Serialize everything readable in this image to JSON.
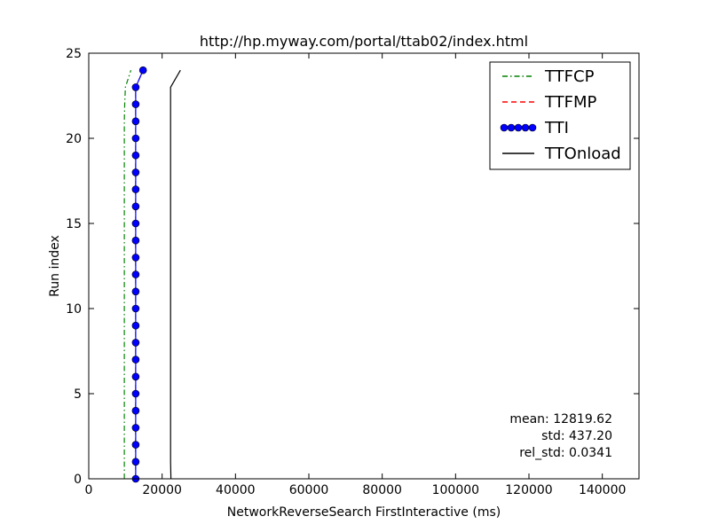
{
  "chart_data": {
    "type": "line",
    "title": "http://hp.myway.com/portal/ttab02/index.html",
    "xlabel": "NetworkReverseSearch FirstInteractive (ms)",
    "ylabel": "Run index",
    "xlim": [
      0,
      150000
    ],
    "ylim": [
      0,
      25
    ],
    "xticks": [
      0,
      20000,
      40000,
      60000,
      80000,
      100000,
      120000,
      140000
    ],
    "yticks": [
      0,
      5,
      10,
      15,
      20,
      25
    ],
    "grid": false,
    "legend_position": "top-right",
    "series": [
      {
        "name": "TTFCP",
        "style": "dashdot",
        "color": "#008000",
        "x": [
          9700,
          9700,
          9700,
          9700,
          9700,
          9700,
          9700,
          9700,
          9700,
          9700,
          9700,
          9700,
          9700,
          9700,
          9700,
          9700,
          9700,
          9700,
          9700,
          9700,
          9700,
          9700,
          9800,
          10000,
          11500
        ],
        "y": [
          0,
          1,
          2,
          3,
          4,
          5,
          6,
          7,
          8,
          9,
          10,
          11,
          12,
          13,
          14,
          15,
          16,
          17,
          18,
          19,
          20,
          21,
          22,
          23,
          24
        ]
      },
      {
        "name": "TTFMP",
        "style": "dashed",
        "color": "#ff0000",
        "x": [
          12800,
          12800,
          12800,
          12800,
          12800,
          12800,
          12800,
          12800,
          12800,
          12800,
          12800,
          12800,
          12800,
          12800,
          12800,
          12800,
          12800,
          12800,
          12800,
          12800,
          12800,
          12800,
          12800,
          12800,
          14800
        ],
        "y": [
          0,
          1,
          2,
          3,
          4,
          5,
          6,
          7,
          8,
          9,
          10,
          11,
          12,
          13,
          14,
          15,
          16,
          17,
          18,
          19,
          20,
          21,
          22,
          23,
          24
        ]
      },
      {
        "name": "TTI",
        "style": "solid-markers",
        "color": "#0000ff",
        "x": [
          12800,
          12800,
          12800,
          12800,
          12800,
          12800,
          12800,
          12800,
          12800,
          12800,
          12800,
          12800,
          12800,
          12800,
          12800,
          12800,
          12800,
          12800,
          12800,
          12800,
          12800,
          12800,
          12800,
          12800,
          14800
        ],
        "y": [
          0,
          1,
          2,
          3,
          4,
          5,
          6,
          7,
          8,
          9,
          10,
          11,
          12,
          13,
          14,
          15,
          16,
          17,
          18,
          19,
          20,
          21,
          22,
          23,
          24
        ]
      },
      {
        "name": "TTOnload",
        "style": "solid",
        "color": "#000000",
        "x": [
          22400,
          22300,
          22300,
          22300,
          22300,
          22300,
          22300,
          22300,
          22300,
          22300,
          22300,
          22300,
          22300,
          22300,
          22300,
          22300,
          22300,
          22300,
          22300,
          22300,
          22300,
          22300,
          22300,
          22300,
          25000
        ],
        "y": [
          0,
          1,
          2,
          3,
          4,
          5,
          6,
          7,
          8,
          9,
          10,
          11,
          12,
          13,
          14,
          15,
          16,
          17,
          18,
          19,
          20,
          21,
          22,
          23,
          24
        ]
      }
    ],
    "annotations": [
      "mean: 12819.62",
      "std: 437.20",
      "rel_std: 0.0341"
    ]
  }
}
